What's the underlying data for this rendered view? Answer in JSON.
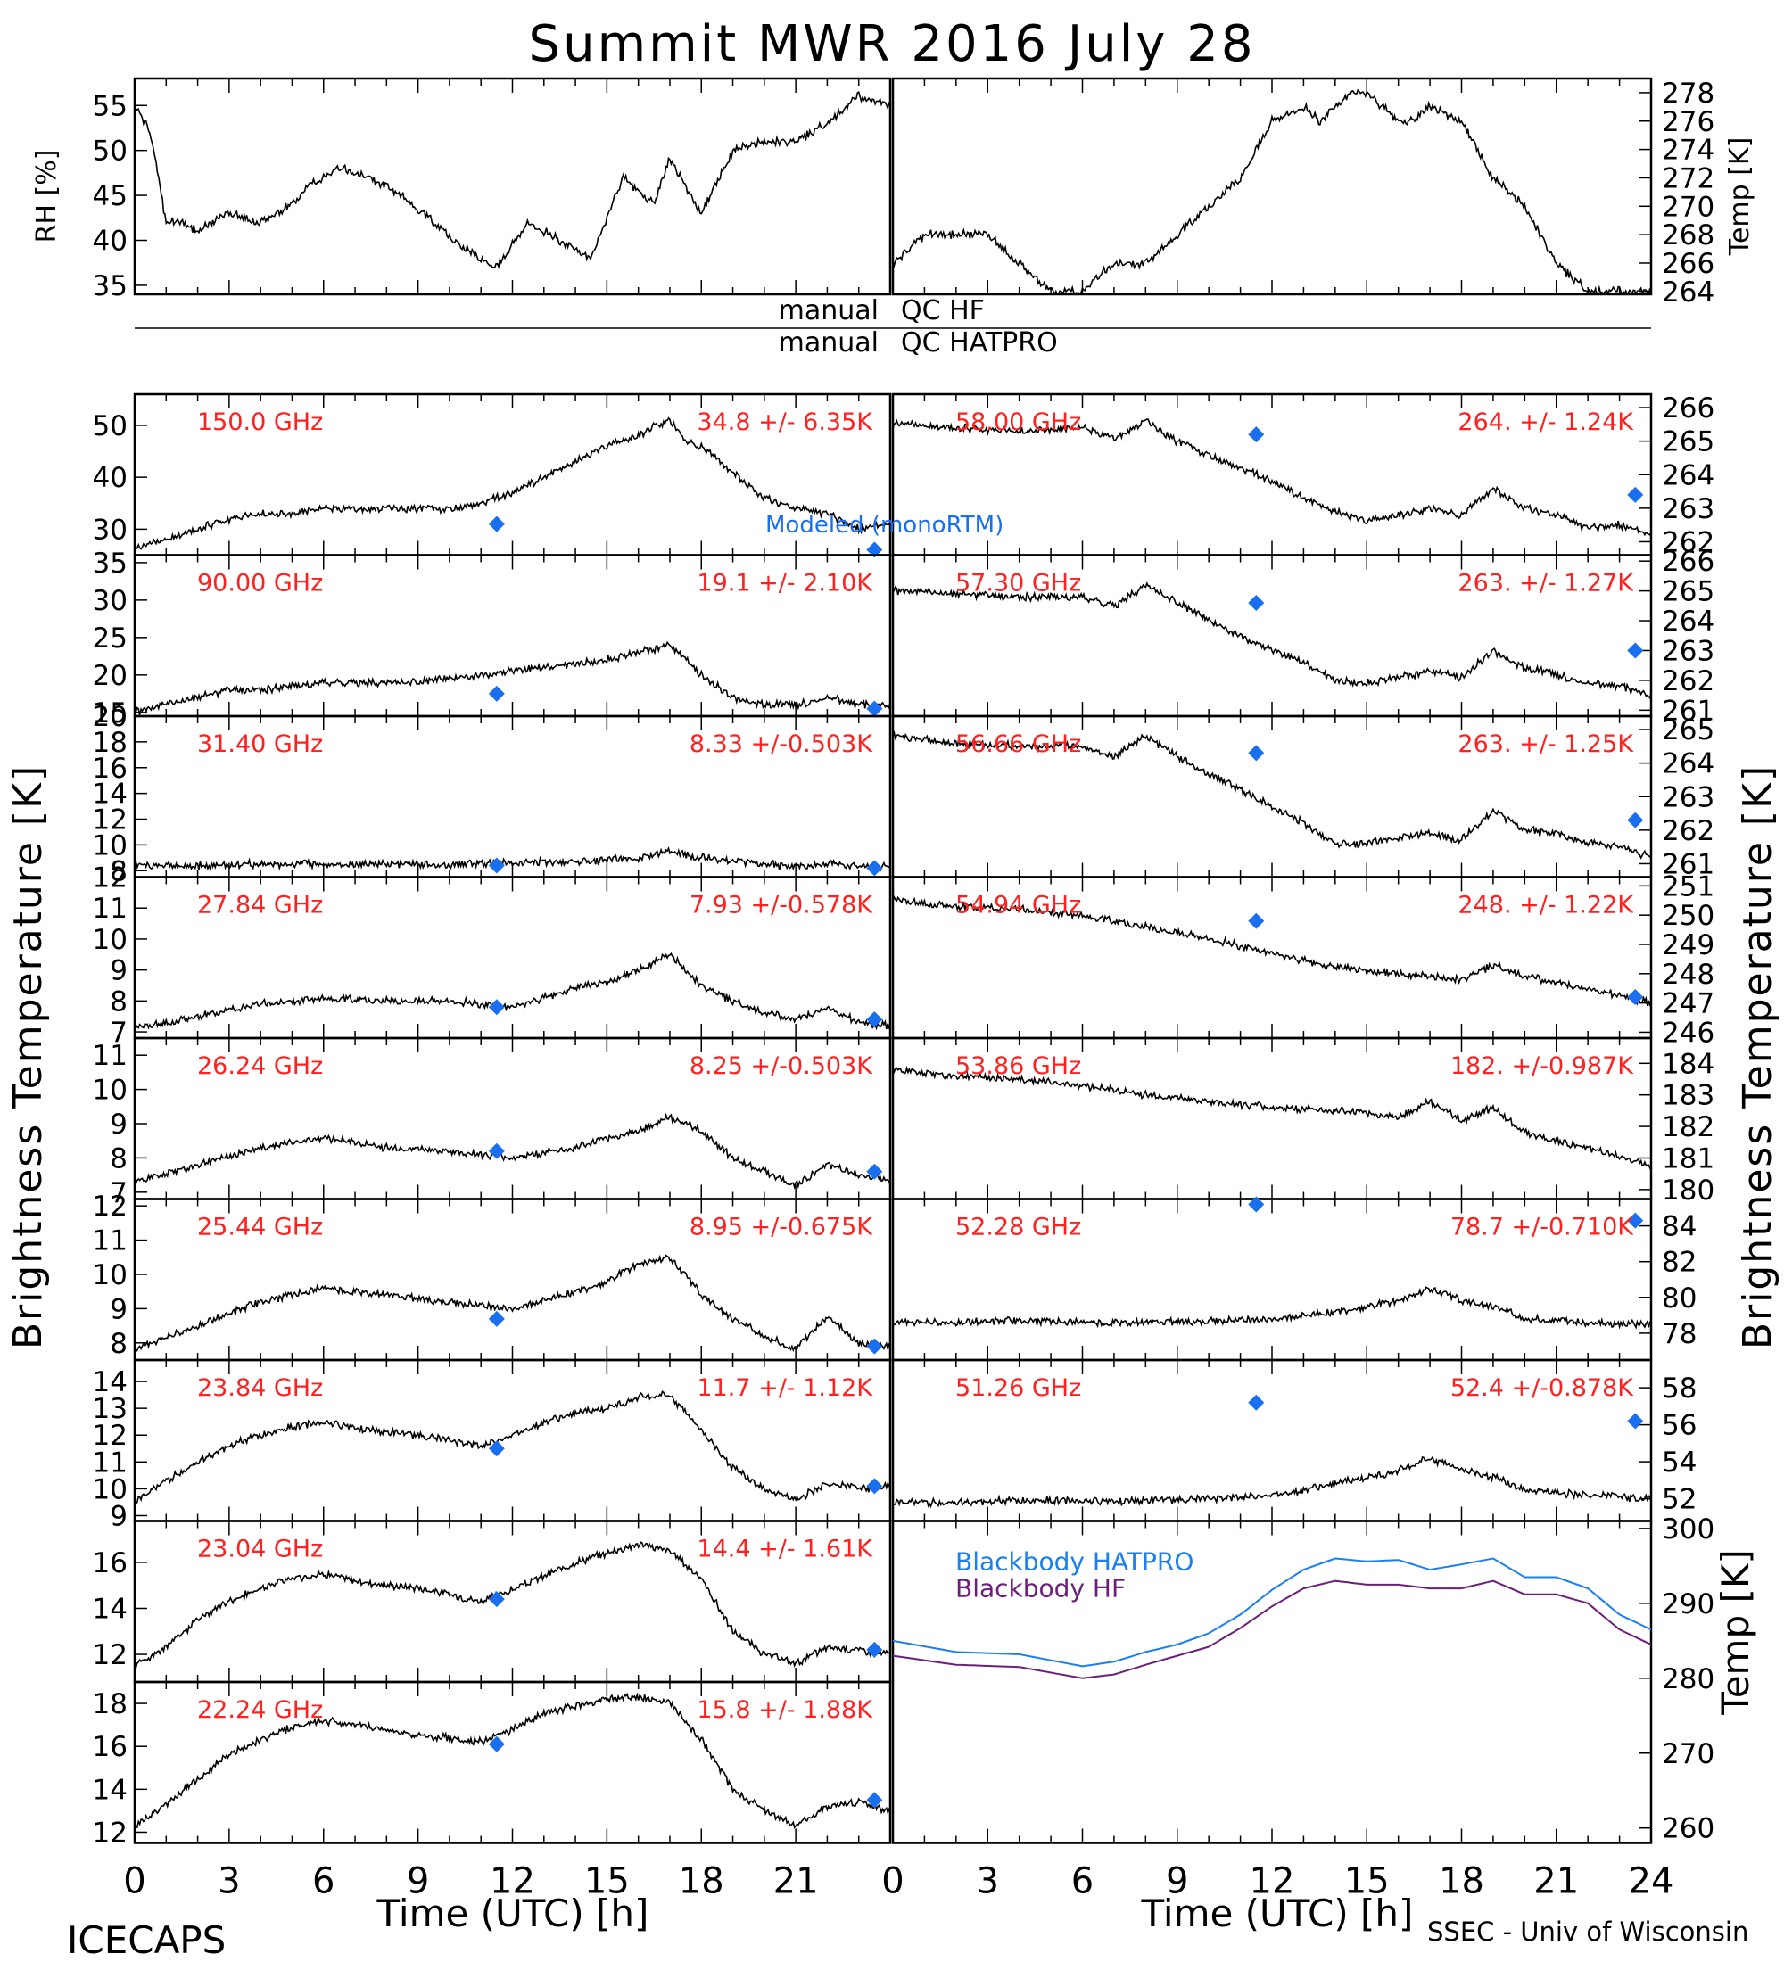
{
  "title": "Summit MWR 2016 July 28",
  "footer_left": "ICECAPS",
  "footer_right": "SSEC - Univ of Wisconsin",
  "colors": {
    "trace": "#000000",
    "label": "#ff2020",
    "model": "#1a6ff0",
    "bb_hatpro": "#1a7ff0",
    "bb_hf": "#6b1f7a"
  },
  "xaxis": {
    "label": "Time (UTC) [h]",
    "ticks": [
      "0",
      "3",
      "6",
      "9",
      "12",
      "15",
      "18",
      "21",
      "24"
    ]
  },
  "qc": {
    "hf_left": "manual",
    "hf_right": "QC HF",
    "hatpro_left": "manual",
    "hatpro_right": "QC HATPRO"
  },
  "left_ylabel": "Brightness Temperature [K]",
  "right_ylabel": "Brightness Temperature [K]",
  "model_label": "Modeled (monoRTM)",
  "chart_data": [
    {
      "type": "line",
      "name": "met-rh",
      "ylabel": "RH [%]",
      "ylim": [
        34,
        58
      ],
      "ticks": [
        "55",
        "50",
        "45",
        "40",
        "35"
      ],
      "x": [
        0,
        0.2,
        0.5,
        1,
        1.5,
        2,
        3,
        4,
        5,
        5.5,
        6.5,
        7.5,
        8.5,
        9.5,
        10.5,
        11.5,
        12.5,
        13.5,
        14.5,
        15.5,
        16.5,
        17,
        18,
        19,
        20,
        21,
        22,
        23,
        24
      ],
      "values": [
        55,
        54,
        52,
        42,
        42,
        41,
        43,
        42,
        44,
        46,
        48,
        47,
        45,
        42,
        39,
        37,
        42,
        40,
        38,
        47,
        44,
        49,
        43,
        50,
        51,
        51,
        53,
        56,
        55
      ]
    },
    {
      "type": "line",
      "name": "met-temp",
      "ylabel": "Temp [K]",
      "ylim": [
        263.8,
        279
      ],
      "ticks": [
        "278",
        "276",
        "274",
        "272",
        "270",
        "268",
        "266",
        "264"
      ],
      "x": [
        0,
        1,
        2,
        3,
        4,
        4.5,
        5,
        6,
        7,
        8,
        9,
        10,
        11,
        12,
        13,
        13.5,
        14,
        14.5,
        15,
        15.5,
        16,
        16.5,
        17,
        18,
        19,
        20,
        21,
        22,
        23,
        24
      ],
      "values": [
        266,
        268,
        268,
        268,
        266,
        265,
        264,
        264,
        266,
        266,
        268,
        270,
        272,
        276,
        277,
        276,
        277,
        278,
        278,
        277,
        276,
        276,
        277,
        276,
        272,
        270,
        266,
        264,
        264,
        264
      ]
    },
    {
      "type": "line",
      "panel": "left",
      "row": 0,
      "freq": "150.0 GHz",
      "stat": "34.8 +/- 6.35K",
      "ylim": [
        25,
        56
      ],
      "ticks": [
        "50",
        "40",
        "30"
      ],
      "x": [
        0,
        1,
        2,
        3,
        4,
        5,
        6,
        7,
        8,
        9,
        10,
        11,
        12,
        13,
        14,
        15,
        16,
        16.5,
        17,
        17.5,
        18,
        19,
        20,
        21,
        22,
        23,
        24
      ],
      "values": [
        26,
        28,
        30,
        32,
        33,
        33,
        34,
        34,
        34,
        34,
        34,
        35,
        37,
        40,
        43,
        46,
        48,
        50,
        51,
        47,
        46,
        41,
        36,
        34,
        33,
        30,
        31
      ],
      "model": [
        [
          11.5,
          31
        ],
        [
          23.5,
          26
        ]
      ]
    },
    {
      "type": "line",
      "panel": "left",
      "row": 1,
      "freq": "90.00 GHz",
      "stat": "19.1 +/- 2.10K",
      "ylim": [
        14.5,
        36
      ],
      "ticks": [
        "35",
        "30",
        "25",
        "20",
        "15"
      ],
      "x": [
        0,
        1,
        2,
        3,
        4,
        5,
        6,
        7,
        8,
        9,
        10,
        11,
        12,
        13,
        14,
        15,
        16,
        17,
        18,
        19,
        20,
        21,
        22,
        23,
        24
      ],
      "values": [
        15,
        16,
        17,
        18,
        18,
        18.5,
        19,
        19,
        19,
        19,
        19.5,
        20,
        20.5,
        21,
        21.5,
        22,
        23,
        24,
        20,
        17,
        16,
        16,
        17,
        16,
        16
      ],
      "model": [
        [
          11.5,
          17.5
        ],
        [
          23.5,
          15.5
        ]
      ]
    },
    {
      "type": "line",
      "panel": "left",
      "row": 2,
      "freq": "31.40 GHz",
      "stat": "8.33 +/-0.503K",
      "ylim": [
        7.5,
        20
      ],
      "ticks": [
        "20",
        "18",
        "16",
        "14",
        "12",
        "10",
        "8"
      ],
      "x": [
        0,
        2,
        4,
        6,
        8,
        10,
        12,
        14,
        16,
        17,
        18,
        19,
        20,
        21,
        22,
        23,
        24
      ],
      "values": [
        8.4,
        8.4,
        8.5,
        8.5,
        8.5,
        8.5,
        8.6,
        8.7,
        9,
        9.5,
        9,
        8.8,
        8.5,
        8.3,
        8.5,
        8.3,
        8.3
      ],
      "model": [
        [
          11.5,
          8.4
        ],
        [
          23.5,
          8.2
        ]
      ]
    },
    {
      "type": "line",
      "panel": "left",
      "row": 3,
      "freq": "27.84 GHz",
      "stat": "7.93 +/-0.578K",
      "ylim": [
        6.8,
        12
      ],
      "ticks": [
        "12",
        "11",
        "10",
        "9",
        "8",
        "7"
      ],
      "x": [
        0,
        2,
        4,
        6,
        8,
        10,
        12,
        14,
        15,
        16,
        17,
        18,
        19,
        20,
        21,
        22,
        23,
        24
      ],
      "values": [
        7.1,
        7.5,
        7.9,
        8.1,
        8,
        8,
        7.8,
        8.4,
        8.6,
        9,
        9.5,
        8.5,
        8,
        7.6,
        7.4,
        7.8,
        7.3,
        7.2
      ],
      "model": [
        [
          11.5,
          7.8
        ],
        [
          23.5,
          7.4
        ]
      ]
    },
    {
      "type": "line",
      "panel": "left",
      "row": 4,
      "freq": "26.24 GHz",
      "stat": "8.25 +/-0.503K",
      "ylim": [
        6.8,
        11.5
      ],
      "ticks": [
        "11",
        "10",
        "9",
        "8",
        "7"
      ],
      "x": [
        0,
        2,
        4,
        6,
        8,
        10,
        12,
        14,
        16,
        17,
        18,
        19,
        20,
        21,
        22,
        23,
        24
      ],
      "values": [
        7.3,
        7.8,
        8.3,
        8.6,
        8.3,
        8.2,
        8,
        8.3,
        8.8,
        9.2,
        8.8,
        8,
        7.6,
        7.2,
        7.8,
        7.5,
        7.4
      ],
      "model": [
        [
          11.5,
          8.2
        ],
        [
          23.5,
          7.6
        ]
      ]
    },
    {
      "type": "line",
      "panel": "left",
      "row": 5,
      "freq": "25.44 GHz",
      "stat": "8.95 +/-0.675K",
      "ylim": [
        7.5,
        12.2
      ],
      "ticks": [
        "12",
        "11",
        "10",
        "9",
        "8"
      ],
      "x": [
        0,
        2,
        4,
        6,
        8,
        10,
        12,
        14,
        15,
        16,
        17,
        18,
        19,
        20,
        21,
        22,
        23,
        24
      ],
      "values": [
        7.8,
        8.5,
        9.2,
        9.6,
        9.4,
        9.2,
        9,
        9.5,
        9.8,
        10.3,
        10.5,
        9.4,
        8.7,
        8.2,
        7.8,
        8.8,
        8,
        7.9
      ],
      "model": [
        [
          11.5,
          8.7
        ],
        [
          23.5,
          7.9
        ]
      ]
    },
    {
      "type": "line",
      "panel": "left",
      "row": 6,
      "freq": "23.84 GHz",
      "stat": "11.7 +/- 1.12K",
      "ylim": [
        8.8,
        14.8
      ],
      "ticks": [
        "14",
        "13",
        "12",
        "11",
        "10",
        "9"
      ],
      "x": [
        0,
        1,
        2,
        3,
        4,
        5,
        6,
        7,
        8,
        9,
        10,
        11,
        12,
        13,
        14,
        15,
        16,
        17,
        18,
        19,
        20,
        21,
        22,
        23,
        24
      ],
      "values": [
        9.5,
        10.3,
        11,
        11.6,
        12,
        12.3,
        12.5,
        12.3,
        12.1,
        12,
        11.8,
        11.6,
        12,
        12.5,
        12.8,
        13,
        13.4,
        13.5,
        12.2,
        10.8,
        10,
        9.6,
        10.2,
        10,
        10.1
      ],
      "model": [
        [
          11.5,
          11.5
        ],
        [
          23.5,
          10.1
        ]
      ]
    },
    {
      "type": "line",
      "panel": "left",
      "row": 7,
      "freq": "23.04 GHz",
      "stat": "14.4 +/- 1.61K",
      "ylim": [
        10.8,
        17.8
      ],
      "ticks": [
        "16",
        "14",
        "12"
      ],
      "x": [
        0,
        1,
        2,
        3,
        4,
        5,
        6,
        7,
        8,
        9,
        10,
        11,
        12,
        13,
        14,
        15,
        16,
        17,
        18,
        19,
        20,
        21,
        22,
        23,
        24
      ],
      "values": [
        11.5,
        12.3,
        13.5,
        14.3,
        14.9,
        15.3,
        15.5,
        15.2,
        15,
        14.9,
        14.6,
        14.3,
        14.8,
        15.4,
        16,
        16.4,
        16.8,
        16.5,
        15.3,
        13,
        12,
        11.6,
        12.3,
        12.2,
        12
      ],
      "model": [
        [
          11.5,
          14.4
        ],
        [
          23.5,
          12.2
        ]
      ]
    },
    {
      "type": "line",
      "panel": "left",
      "row": 8,
      "freq": "22.24 GHz",
      "stat": "15.8 +/- 1.88K",
      "ylim": [
        11.5,
        19
      ],
      "ticks": [
        "18",
        "16",
        "14",
        "12"
      ],
      "x": [
        0,
        1,
        2,
        3,
        4,
        5,
        6,
        7,
        8,
        9,
        10,
        11,
        12,
        13,
        14,
        15,
        16,
        17,
        18,
        19,
        20,
        21,
        22,
        23,
        24
      ],
      "values": [
        12.2,
        13.3,
        14.5,
        15.6,
        16.3,
        16.9,
        17.2,
        17,
        16.8,
        16.5,
        16.4,
        16.2,
        16.8,
        17.5,
        17.9,
        18.2,
        18.3,
        18,
        16.3,
        14,
        13,
        12.3,
        13.2,
        13.4,
        13
      ],
      "model": [
        [
          11.5,
          16.1
        ],
        [
          23.5,
          13.5
        ]
      ]
    },
    {
      "type": "line",
      "panel": "right",
      "row": 0,
      "freq": "58.00 GHz",
      "stat": "264. +/- 1.24K",
      "ylim": [
        261.6,
        266.4
      ],
      "ticks": [
        "266",
        "265",
        "264",
        "263",
        "262"
      ],
      "x": [
        0,
        2,
        4,
        6,
        7,
        8,
        9,
        10,
        11,
        12,
        13,
        14,
        15,
        16,
        17,
        18,
        19,
        20,
        21,
        22,
        23,
        24
      ],
      "values": [
        265.5,
        265.4,
        265.3,
        265.4,
        265.1,
        265.6,
        265,
        264.6,
        264.2,
        263.8,
        263.3,
        262.9,
        262.6,
        262.8,
        263,
        262.8,
        263.6,
        263,
        262.8,
        262.4,
        262.5,
        262.2
      ],
      "model": [
        [
          11.5,
          265.2
        ],
        [
          23.5,
          263.4
        ]
      ]
    },
    {
      "type": "line",
      "panel": "right",
      "row": 1,
      "freq": "57.30 GHz",
      "stat": "263. +/- 1.27K",
      "ylim": [
        260.8,
        266.2
      ],
      "ticks": [
        "266",
        "265",
        "264",
        "263",
        "262",
        "261"
      ],
      "x": [
        0,
        2,
        4,
        6,
        7,
        8,
        9,
        10,
        11,
        12,
        13,
        14,
        15,
        16,
        17,
        18,
        19,
        20,
        21,
        22,
        23,
        24
      ],
      "values": [
        265,
        264.9,
        264.8,
        264.8,
        264.5,
        265.2,
        264.6,
        264,
        263.5,
        263,
        262.6,
        262,
        261.9,
        262.1,
        262.3,
        262.1,
        263,
        262.4,
        262.2,
        261.9,
        261.8,
        261.5
      ],
      "model": [
        [
          11.5,
          264.6
        ],
        [
          23.5,
          263
        ]
      ]
    },
    {
      "type": "line",
      "panel": "right",
      "row": 2,
      "freq": "56.66 GHz",
      "stat": "263. +/- 1.25K",
      "ylim": [
        260.6,
        265.4
      ],
      "ticks": [
        "265",
        "264",
        "263",
        "262",
        "261"
      ],
      "x": [
        0,
        2,
        4,
        6,
        7,
        8,
        9,
        10,
        11,
        12,
        13,
        14,
        15,
        16,
        17,
        18,
        19,
        20,
        21,
        22,
        23,
        24
      ],
      "values": [
        264.8,
        264.6,
        264.5,
        264.5,
        264.2,
        264.8,
        264.2,
        263.7,
        263.2,
        262.7,
        262.2,
        261.6,
        261.6,
        261.8,
        261.9,
        261.7,
        262.6,
        262,
        261.9,
        261.6,
        261.5,
        261.2
      ],
      "model": [
        [
          11.5,
          264.3
        ],
        [
          23.5,
          262.3
        ]
      ]
    },
    {
      "type": "line",
      "panel": "right",
      "row": 3,
      "freq": "54.94 GHz",
      "stat": "248. +/- 1.22K",
      "ylim": [
        245.8,
        251.3
      ],
      "ticks": [
        "251",
        "250",
        "249",
        "248",
        "247",
        "246"
      ],
      "x": [
        0,
        2,
        4,
        6,
        8,
        10,
        12,
        14,
        16,
        18,
        19,
        20,
        22,
        24
      ],
      "values": [
        250.5,
        250.3,
        250.2,
        250,
        249.6,
        249.2,
        248.7,
        248.2,
        248,
        247.8,
        248.3,
        247.9,
        247.5,
        247
      ],
      "model": [
        [
          11.5,
          249.8
        ],
        [
          23.5,
          247.2
        ]
      ]
    },
    {
      "type": "line",
      "panel": "right",
      "row": 4,
      "freq": "53.86 GHz",
      "stat": "182. +/-0.987K",
      "ylim": [
        179.7,
        184.8
      ],
      "ticks": [
        "184",
        "183",
        "182",
        "181",
        "180"
      ],
      "x": [
        0,
        2,
        4,
        6,
        8,
        10,
        12,
        14,
        16,
        17,
        18,
        19,
        20,
        22,
        24
      ],
      "values": [
        183.8,
        183.6,
        183.5,
        183.3,
        183,
        182.8,
        182.6,
        182.5,
        182.3,
        182.8,
        182.2,
        182.6,
        181.8,
        181.3,
        180.8
      ],
      "model": []
    },
    {
      "type": "line",
      "panel": "right",
      "row": 5,
      "freq": "52.28 GHz",
      "stat": "78.7 +/-0.710K",
      "ylim": [
        76.5,
        85.5
      ],
      "ticks": [
        "84",
        "82",
        "80",
        "78"
      ],
      "x": [
        0,
        2,
        4,
        6,
        8,
        10,
        12,
        14,
        16,
        17,
        18,
        19,
        20,
        22,
        24
      ],
      "values": [
        78.6,
        78.6,
        78.7,
        78.6,
        78.6,
        78.7,
        78.8,
        79.2,
        79.8,
        80.5,
        79.8,
        79.5,
        78.8,
        78.6,
        78.5
      ],
      "model": [
        [
          11.5,
          85.5
        ],
        [
          23.5,
          84.3
        ]
      ]
    },
    {
      "type": "line",
      "panel": "right",
      "row": 6,
      "freq": "51.26 GHz",
      "stat": "52.4 +/-0.878K",
      "ylim": [
        50.8,
        59.5
      ],
      "ticks": [
        "58",
        "56",
        "54",
        "52"
      ],
      "x": [
        0,
        2,
        4,
        6,
        8,
        10,
        12,
        14,
        16,
        17,
        18,
        19,
        20,
        22,
        24
      ],
      "values": [
        51.8,
        51.8,
        51.9,
        51.9,
        51.9,
        52,
        52.2,
        52.8,
        53.5,
        54.2,
        53.6,
        53.2,
        52.5,
        52.2,
        52
      ],
      "model": [
        [
          11.5,
          57.2
        ],
        [
          23.5,
          56.2
        ]
      ]
    },
    {
      "type": "line",
      "panel": "right",
      "row": 7,
      "name": "blackbody",
      "ylabel": "Temp [K]",
      "ylim": [
        258,
        301
      ],
      "ticks": [
        "300",
        "290",
        "280",
        "270",
        "260"
      ],
      "x": [
        0,
        2,
        4,
        6,
        7,
        8,
        9,
        10,
        11,
        12,
        13,
        14,
        15,
        16,
        17,
        18,
        19,
        20,
        21,
        22,
        23,
        24
      ],
      "series": [
        {
          "name": "Blackbody HATPRO",
          "values": [
            285,
            283.5,
            283.2,
            281.6,
            282.2,
            283.5,
            284.5,
            286,
            288.5,
            291.8,
            294.5,
            296,
            295.6,
            295.8,
            294.5,
            295.2,
            296,
            293.5,
            293.5,
            292,
            288.5,
            286.5
          ]
        },
        {
          "name": "Blackbody HF",
          "values": [
            283,
            281.8,
            281.5,
            280,
            280.5,
            281.8,
            283,
            284.2,
            286.7,
            289.6,
            292,
            293,
            292.5,
            292.5,
            292,
            292,
            293,
            291.2,
            291.2,
            290,
            286.5,
            284.5
          ]
        }
      ]
    }
  ]
}
